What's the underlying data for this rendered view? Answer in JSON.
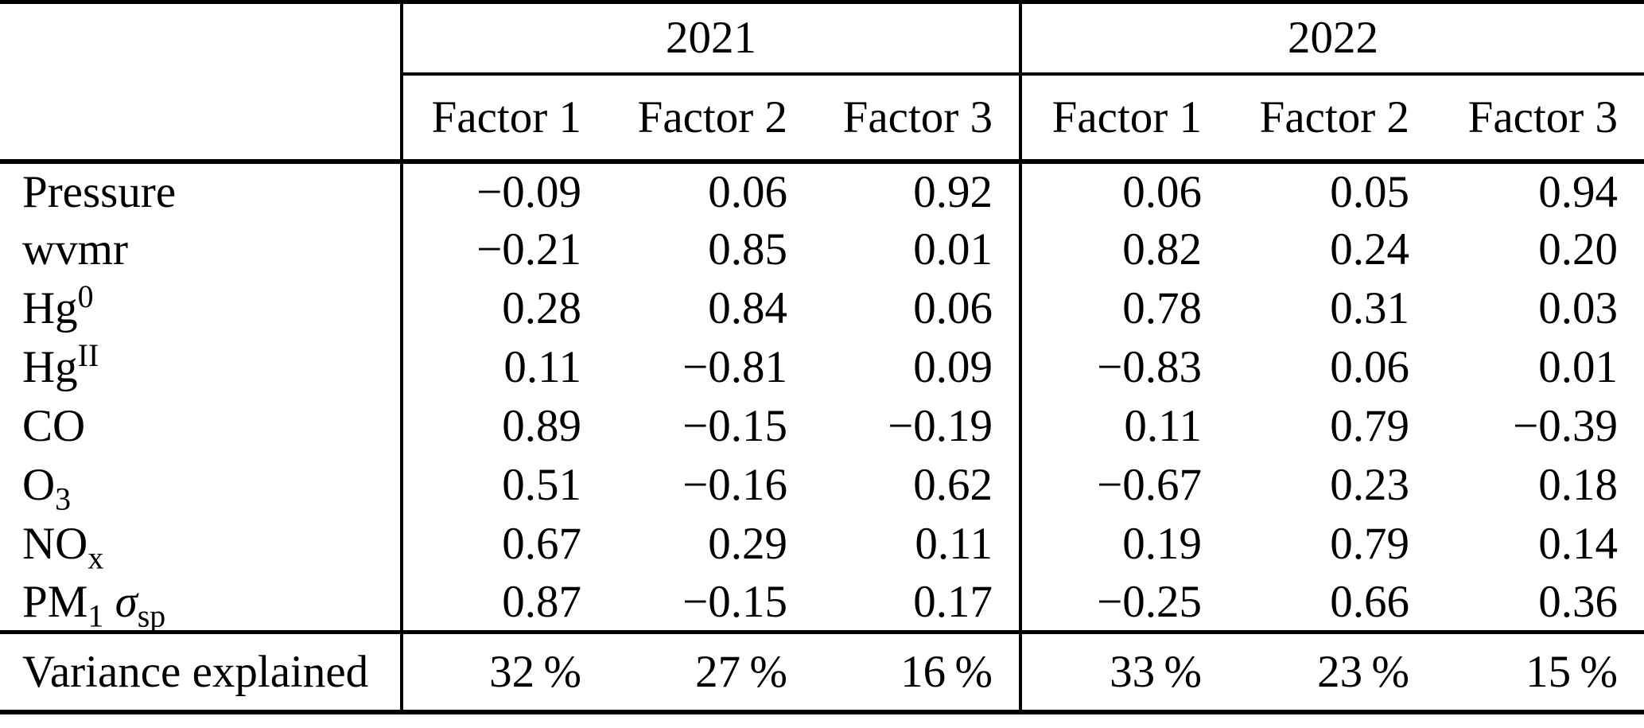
{
  "table": {
    "year_headers": [
      "2021",
      "2022"
    ],
    "factor_headers": [
      "Factor 1",
      "Factor 2",
      "Factor 3",
      "Factor 1",
      "Factor 2",
      "Factor 3"
    ],
    "rows": [
      {
        "label": [
          {
            "t": "Pressure"
          }
        ],
        "values": [
          "−0.09",
          "0.06",
          "0.92",
          "0.06",
          "0.05",
          "0.94"
        ]
      },
      {
        "label": [
          {
            "t": "wvmr"
          }
        ],
        "values": [
          "−0.21",
          "0.85",
          "0.01",
          "0.82",
          "0.24",
          "0.20"
        ]
      },
      {
        "label": [
          {
            "t": "Hg"
          },
          {
            "sup": "0"
          }
        ],
        "values": [
          "0.28",
          "0.84",
          "0.06",
          "0.78",
          "0.31",
          "0.03"
        ]
      },
      {
        "label": [
          {
            "t": "Hg"
          },
          {
            "sup": "II"
          }
        ],
        "values": [
          "0.11",
          "−0.81",
          "0.09",
          "−0.83",
          "0.06",
          "0.01"
        ]
      },
      {
        "label": [
          {
            "t": "CO"
          }
        ],
        "values": [
          "0.89",
          "−0.15",
          "−0.19",
          "0.11",
          "0.79",
          "−0.39"
        ]
      },
      {
        "label": [
          {
            "t": "O"
          },
          {
            "sub": "3"
          }
        ],
        "values": [
          "0.51",
          "−0.16",
          "0.62",
          "−0.67",
          "0.23",
          "0.18"
        ]
      },
      {
        "label": [
          {
            "t": "NO"
          },
          {
            "sub": "x"
          }
        ],
        "values": [
          "0.67",
          "0.29",
          "0.11",
          "0.19",
          "0.79",
          "0.14"
        ]
      },
      {
        "label": [
          {
            "t": "PM"
          },
          {
            "sub": "1"
          },
          {
            "t": " "
          },
          {
            "i": "σ"
          },
          {
            "sub": "sp"
          }
        ],
        "values": [
          "0.87",
          "−0.15",
          "0.17",
          "−0.25",
          "0.66",
          "0.36"
        ]
      }
    ],
    "footer_row": {
      "label": [
        {
          "t": "Variance explained"
        }
      ],
      "values": [
        "32 %",
        "27 %",
        "16 %",
        "33 %",
        "23 %",
        "15 %"
      ]
    }
  }
}
